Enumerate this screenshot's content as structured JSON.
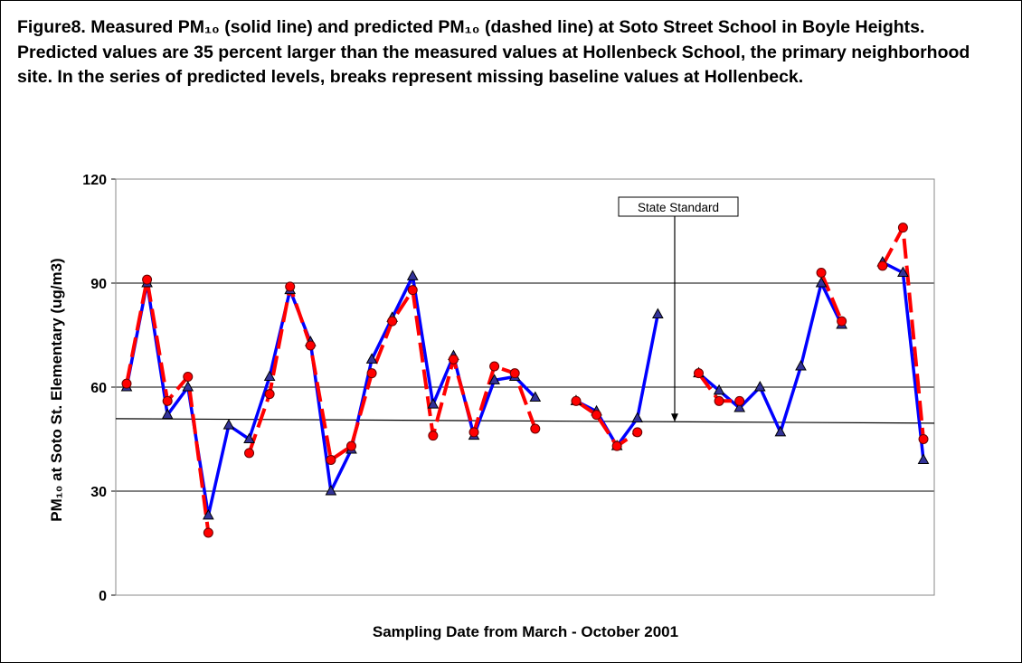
{
  "chart_data": {
    "type": "line",
    "title": "Figure8.  Measured PM₁₀ (solid line) and predicted PM₁₀ (dashed line) at Soto Street School in Boyle Heights. Predicted values are 35 percent larger than the measured values at Hollenbeck School, the primary neighborhood site. In the series of predicted levels, breaks represent missing baseline values at Hollenbeck.",
    "x_label": "Sampling Date from March - October 2001",
    "y_label": "PM₁₀ at Soto St. Elementary (ug/m3)",
    "ylim": [
      0,
      120
    ],
    "yticks": [
      0,
      30,
      60,
      90,
      120
    ],
    "grid": true,
    "series": [
      {
        "name": "Measured",
        "color": "#0000ff",
        "marker_color": "#333399",
        "line_style": "solid",
        "values": [
          60,
          90,
          52,
          60,
          23,
          49,
          45,
          63,
          88,
          73,
          30,
          42,
          68,
          80,
          92,
          55,
          69,
          46,
          62,
          63,
          57,
          null,
          56,
          53,
          43,
          51,
          81,
          null,
          64,
          59,
          54,
          60,
          47,
          66,
          90,
          78,
          null,
          96,
          93,
          39
        ]
      },
      {
        "name": "Predicted",
        "color": "#ff0000",
        "marker_color": "#ff0000",
        "line_style": "dashed",
        "values": [
          61,
          91,
          56,
          63,
          18,
          null,
          41,
          58,
          89,
          72,
          39,
          43,
          64,
          79,
          88,
          46,
          68,
          47,
          66,
          64,
          48,
          null,
          56,
          52,
          43,
          47,
          null,
          null,
          64,
          56,
          56,
          null,
          null,
          null,
          93,
          79,
          null,
          95,
          106,
          45
        ]
      }
    ],
    "reference_line": {
      "label": "State Standard",
      "values": [
        50.9,
        49.6
      ]
    }
  }
}
